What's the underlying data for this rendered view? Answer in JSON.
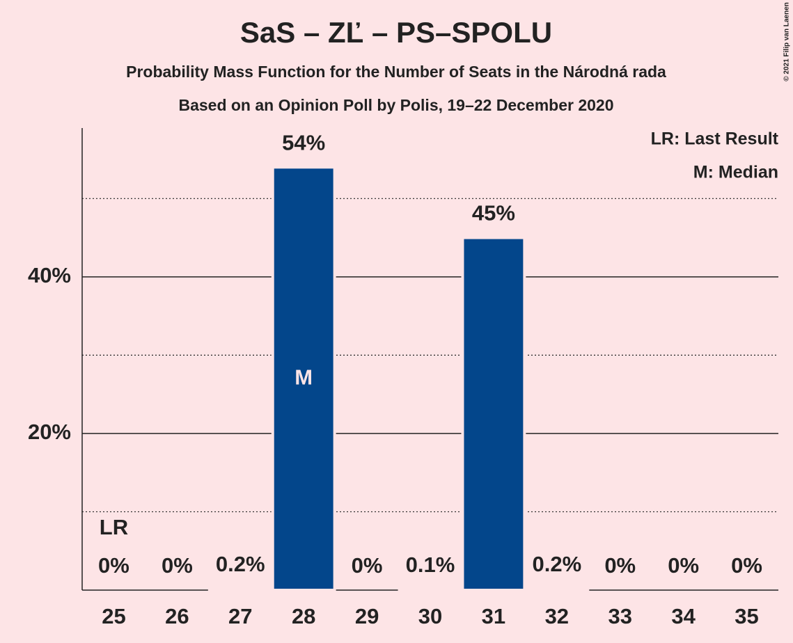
{
  "chart_data": {
    "type": "bar",
    "title": "SaS – ZĽ – PS–SPOLU",
    "subtitle": [
      "Probability Mass Function for the Number of Seats in the Národná rada",
      "Based on an Opinion Poll by Polis, 19–22 December 2020"
    ],
    "categories": [
      "25",
      "26",
      "27",
      "28",
      "29",
      "30",
      "31",
      "32",
      "33",
      "34",
      "35"
    ],
    "values": [
      0,
      0,
      0.2,
      54,
      0,
      0.1,
      45,
      0.2,
      0,
      0,
      0
    ],
    "value_labels": [
      "0%",
      "0%",
      "0.2%",
      "54%",
      "0%",
      "0.1%",
      "45%",
      "0.2%",
      "0%",
      "0%",
      "0%"
    ],
    "color": "#03468b",
    "ylim": [
      0,
      59
    ],
    "yticks": [
      {
        "value": 20,
        "label": "20%"
      },
      {
        "value": 40,
        "label": "40%"
      }
    ],
    "minor_yticks": [
      10,
      30,
      50
    ],
    "grid": true,
    "last_result": {
      "label": "LR",
      "category": "25"
    },
    "median": {
      "label": "M",
      "category": "28"
    },
    "legend": [
      "LR: Last Result",
      "M: Median"
    ],
    "legend_position": "upper right",
    "copyright": "© 2021 Filip van Laenen"
  }
}
